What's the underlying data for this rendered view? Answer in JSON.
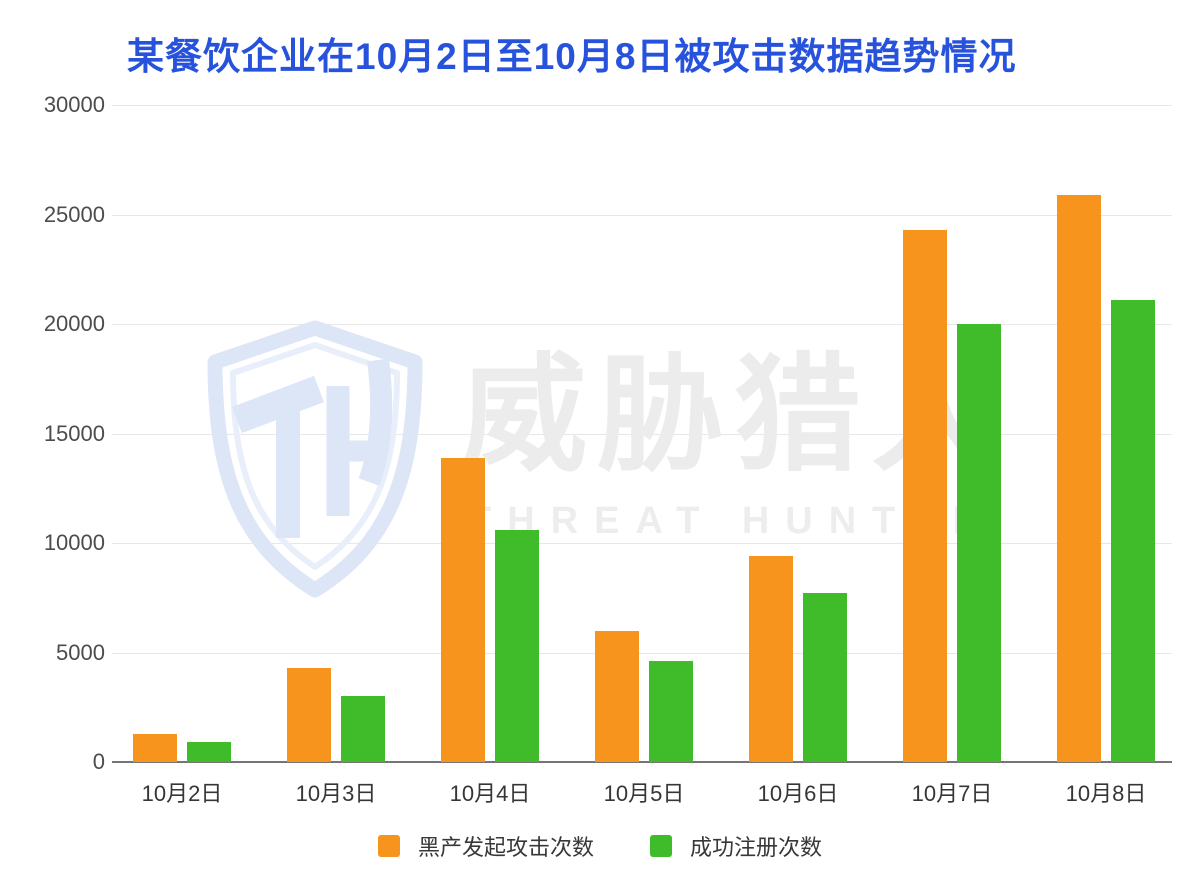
{
  "title": "某餐饮企业在10月2日至10月8日被攻击数据趋势情况",
  "colors": {
    "title": "#2652dc",
    "attack_orange": "#f7941e",
    "register_green": "#40bc2b",
    "gridline": "#e7e7e7",
    "axis_line": "#757575",
    "watermark_gray": "#ececec",
    "watermark_blue": "#dce6f6"
  },
  "watermark": {
    "logo": "threat-hunter-shield-th-logo",
    "cn": "威胁猎人",
    "en": "THREAT HUNTER"
  },
  "legend": {
    "items": [
      {
        "label": "黑产发起攻击次数",
        "color": "#f7941e"
      },
      {
        "label": "成功注册次数",
        "color": "#40bc2b"
      }
    ]
  },
  "chart_data": {
    "type": "bar",
    "title": "某餐饮企业在10月2日至10月8日被攻击数据趋势情况",
    "categories": [
      "10月2日",
      "10月3日",
      "10月4日",
      "10月5日",
      "10月6日",
      "10月7日",
      "10月8日"
    ],
    "series": [
      {
        "name": "黑产发起攻击次数",
        "color": "#f7941e",
        "values": [
          1300,
          4300,
          13900,
          6000,
          9400,
          24300,
          25900
        ]
      },
      {
        "name": "成功注册次数",
        "color": "#40bc2b",
        "values": [
          900,
          3000,
          10600,
          4600,
          7700,
          20000,
          21100
        ]
      }
    ],
    "xlabel": "",
    "ylabel": "",
    "ylim": [
      0,
      30000
    ],
    "yticks": [
      0,
      5000,
      10000,
      15000,
      20000,
      25000,
      30000
    ],
    "grid": "horizontal-only",
    "legend_position": "bottom"
  }
}
